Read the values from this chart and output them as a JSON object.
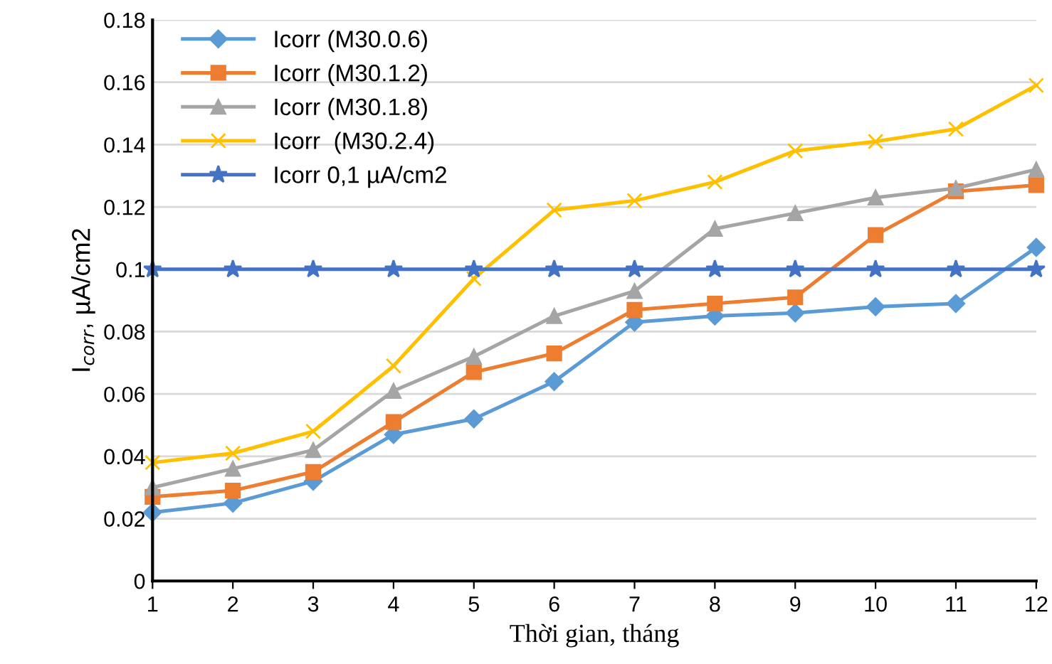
{
  "chart_data": {
    "type": "line",
    "xlabel": "Thời gian, tháng",
    "ylabel": "I$_{corr}$, µA/cm2",
    "x": [
      1,
      2,
      3,
      4,
      5,
      6,
      7,
      8,
      9,
      10,
      11,
      12
    ],
    "xlim": [
      1,
      12
    ],
    "xticks": [
      1,
      2,
      3,
      4,
      5,
      6,
      7,
      8,
      9,
      10,
      11,
      12
    ],
    "ylim": [
      0,
      0.18
    ],
    "yticks": [
      0,
      0.02,
      0.04,
      0.06,
      0.08,
      0.1,
      0.12,
      0.14,
      0.16,
      0.18
    ],
    "grid": "y",
    "legend": "top left",
    "line_style": "solid",
    "series": [
      {
        "name": "Icorr (M30.0.6)",
        "color": "#5b9bd5",
        "marker": "diamond",
        "values": [
          0.022,
          0.025,
          0.032,
          0.047,
          0.052,
          0.064,
          0.083,
          0.085,
          0.086,
          0.088,
          0.089,
          0.107
        ]
      },
      {
        "name": "Icorr (M30.1.2)",
        "color": "#ed7d31",
        "marker": "square",
        "values": [
          0.027,
          0.029,
          0.035,
          0.051,
          0.067,
          0.073,
          0.087,
          0.089,
          0.091,
          0.111,
          0.125,
          0.127
        ]
      },
      {
        "name": "Icorr (M30.1.8)",
        "color": "#a5a5a5",
        "marker": "triangle",
        "values": [
          0.03,
          0.036,
          0.042,
          0.061,
          0.072,
          0.085,
          0.093,
          0.113,
          0.118,
          0.123,
          0.126,
          0.132
        ]
      },
      {
        "name": "Icorr  (M30.2.4)",
        "color": "#ffc000",
        "marker": "cross",
        "values": [
          0.038,
          0.041,
          0.048,
          0.069,
          0.097,
          0.119,
          0.122,
          0.128,
          0.138,
          0.141,
          0.145,
          0.159
        ]
      },
      {
        "name": "Icorr 0,1 µA/cm2",
        "color": "#4472c4",
        "marker": "star",
        "values": [
          0.1,
          0.1,
          0.1,
          0.1,
          0.1,
          0.1,
          0.1,
          0.1,
          0.1,
          0.1,
          0.1,
          0.1
        ]
      }
    ]
  }
}
